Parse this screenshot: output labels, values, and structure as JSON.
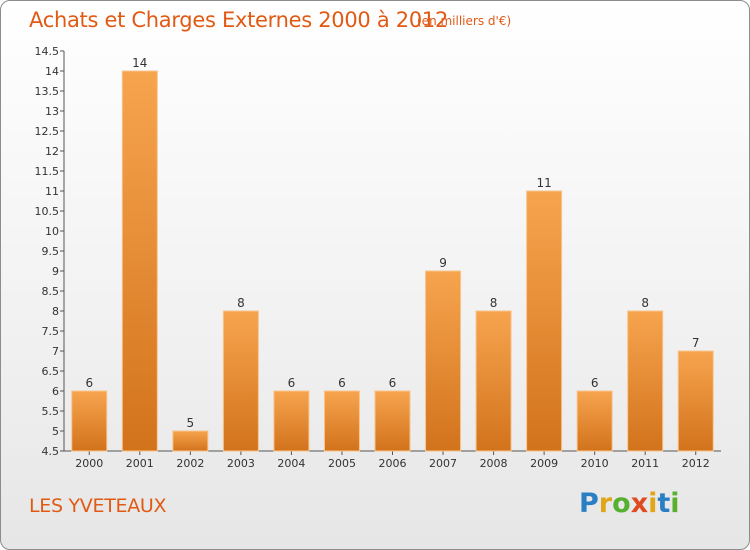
{
  "chart_data": {
    "type": "bar",
    "title": "Achats et Charges Externes 2000 à 2012",
    "subtitle": "(en milliers d'€)",
    "xlabel": "",
    "ylabel": "",
    "categories": [
      "2000",
      "2001",
      "2002",
      "2003",
      "2004",
      "2005",
      "2006",
      "2007",
      "2008",
      "2009",
      "2010",
      "2011",
      "2012"
    ],
    "values": [
      6,
      14,
      5,
      8,
      6,
      6,
      6,
      9,
      8,
      11,
      6,
      8,
      7
    ],
    "data_labels": [
      "6",
      "14",
      "5",
      "8",
      "6",
      "6",
      "6",
      "9",
      "8",
      "11",
      "6",
      "8",
      "7"
    ],
    "ylim": [
      4.5,
      14.5
    ],
    "yticks": [
      4.5,
      5,
      5.5,
      6,
      6.5,
      7,
      7.5,
      8,
      8.5,
      9,
      9.5,
      10,
      10.5,
      11,
      11.5,
      12,
      12.5,
      13,
      13.5,
      14,
      14.5
    ],
    "ytick_labels": [
      "4.5",
      "5",
      "5.5",
      "6",
      "6.5",
      "7",
      "7.5",
      "8",
      "8.5",
      "9",
      "9.5",
      "10",
      "10.5",
      "11",
      "11.5",
      "12",
      "12.5",
      "13",
      "13.5",
      "14",
      "14.5"
    ],
    "grid": false,
    "legend": "none",
    "bar_color_light": "#f7a44f",
    "bar_color_dark": "#d2731c",
    "bar_edge_color": "#f9c48b"
  },
  "location": "LES YVETEAUX",
  "logo": {
    "letters": [
      "P",
      "r",
      "o",
      "x",
      "i",
      "t",
      "i"
    ],
    "colors": [
      "#2a7fc4",
      "#e1a51a",
      "#58b030",
      "#e04a20",
      "#e1a51a",
      "#2a7fc4",
      "#58b030"
    ]
  },
  "text_color": "#e15a14"
}
